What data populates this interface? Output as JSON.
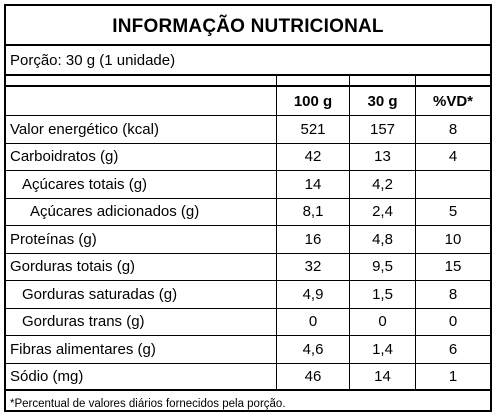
{
  "label": {
    "title": "INFORMAÇÃO NUTRICIONAL",
    "serving": "Porção: 30 g (1 unidade)",
    "headers": {
      "per100": "100 g",
      "per30": "30 g",
      "vd": "%VD*"
    },
    "rows": [
      {
        "name": "Valor energético (kcal)",
        "per100": "521",
        "per30": "157",
        "vd": "8"
      },
      {
        "name": "Carboidratos (g)",
        "per100": "42",
        "per30": "13",
        "vd": "4"
      },
      {
        "name": "Açúcares totais (g)",
        "per100": "14",
        "per30": "4,2",
        "vd": ""
      },
      {
        "name": "Açúcares adicionados (g)",
        "per100": "8,1",
        "per30": "2,4",
        "vd": "5"
      },
      {
        "name": "Proteínas (g)",
        "per100": "16",
        "per30": "4,8",
        "vd": "10"
      },
      {
        "name": "Gorduras totais (g)",
        "per100": "32",
        "per30": "9,5",
        "vd": "15"
      },
      {
        "name": "Gorduras saturadas (g)",
        "per100": "4,9",
        "per30": "1,5",
        "vd": "8"
      },
      {
        "name": "Gorduras trans (g)",
        "per100": "0",
        "per30": "0",
        "vd": "0"
      },
      {
        "name": "Fibras alimentares (g)",
        "per100": "4,6",
        "per30": "1,4",
        "vd": "6"
      },
      {
        "name": "Sódio (mg)",
        "per100": "46",
        "per30": "14",
        "vd": "1"
      }
    ],
    "footnote": "*Percentual de valores diários fornecidos pela porção."
  }
}
